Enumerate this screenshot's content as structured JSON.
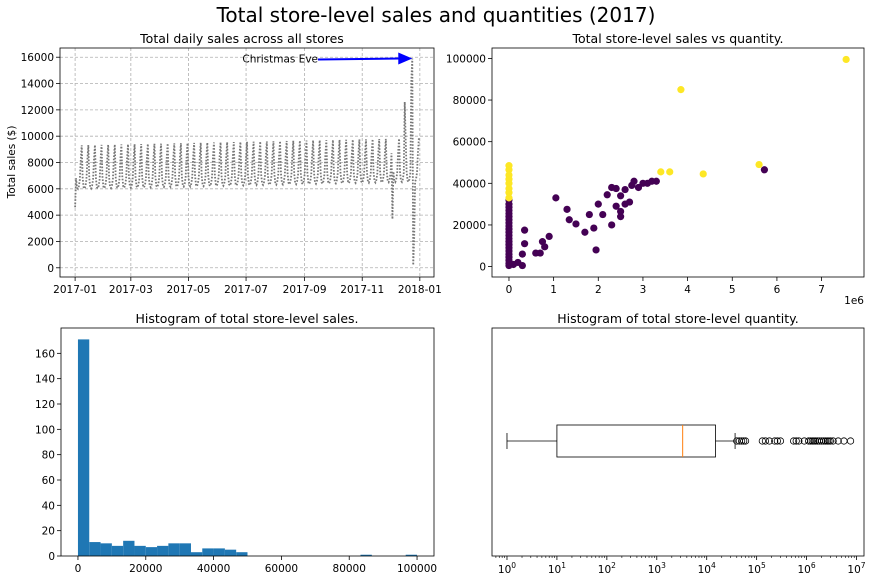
{
  "suptitle": "Total store-level sales and quantities (2017)",
  "chart_data": [
    {
      "type": "line",
      "title": "Total daily sales across all stores",
      "xlabel": "",
      "ylabel": "Total sales ($)",
      "ylim": [
        -700,
        16700
      ],
      "yticks": [
        0,
        2000,
        4000,
        6000,
        8000,
        10000,
        12000,
        14000,
        16000
      ],
      "xticks": [
        "2017-01",
        "2017-03",
        "2017-05",
        "2017-07",
        "2017-09",
        "2017-11",
        "2018-01"
      ],
      "grid": true,
      "line_style": "dotted",
      "color": "#777777",
      "annotation": {
        "text": "Christmas Eve",
        "x": "2017-12-24",
        "y": 15900,
        "arrow_color": "#0000ff"
      },
      "weekly_pattern": {
        "start": "2017-01-01",
        "days": 365,
        "weekday_values": [
          9300,
          6800,
          6100,
          6000,
          6200,
          6700,
          8200
        ],
        "trend_per_day": 1.5
      },
      "special_values": [
        {
          "date": "2017-01-01",
          "y": 4600
        },
        {
          "date": "2017-12-03",
          "y": 3700
        },
        {
          "date": "2017-12-16",
          "y": 12600
        },
        {
          "date": "2017-12-23",
          "y": 14200
        },
        {
          "date": "2017-12-24",
          "y": 15900
        },
        {
          "date": "2017-12-25",
          "y": 200
        },
        {
          "date": "2017-12-26",
          "y": 2300
        }
      ]
    },
    {
      "type": "scatter",
      "title": "Total store-level sales vs quantity.",
      "xlabel": "",
      "ylabel": "",
      "x_scale_label": "1e6",
      "xlim": [
        -0.38,
        7.95
      ],
      "ylim": [
        -5000,
        105000
      ],
      "xticks": [
        0,
        1,
        2,
        3,
        4,
        5,
        6,
        7
      ],
      "yticks": [
        0,
        20000,
        40000,
        60000,
        80000,
        100000
      ],
      "colors": {
        "yellow": "#fde725",
        "purple": "#440154"
      },
      "points_yellow": [
        [
          7.55,
          99500
        ],
        [
          3.85,
          85000
        ],
        [
          5.6,
          49000
        ],
        [
          3.4,
          45500
        ],
        [
          3.6,
          45500
        ],
        [
          4.35,
          44500
        ],
        [
          0.0,
          48500
        ],
        [
          0.0,
          46500
        ],
        [
          0.0,
          44000
        ],
        [
          0.0,
          42000
        ],
        [
          0.0,
          40000
        ],
        [
          0.0,
          37500
        ],
        [
          0.0,
          35500
        ],
        [
          0.0,
          33000
        ]
      ],
      "points_purple": [
        [
          5.72,
          46500
        ],
        [
          2.8,
          41000
        ],
        [
          3.3,
          41000
        ],
        [
          3.2,
          41000
        ],
        [
          3.1,
          40000
        ],
        [
          3.0,
          40000
        ],
        [
          2.75,
          39000
        ],
        [
          2.9,
          38000
        ],
        [
          2.3,
          38000
        ],
        [
          2.4,
          37500
        ],
        [
          2.6,
          37000
        ],
        [
          2.2,
          34500
        ],
        [
          2.5,
          34000
        ],
        [
          1.05,
          33000
        ],
        [
          2.7,
          31000
        ],
        [
          2.6,
          30000
        ],
        [
          2.0,
          30000
        ],
        [
          2.4,
          29000
        ],
        [
          1.3,
          27500
        ],
        [
          2.5,
          26500
        ],
        [
          1.8,
          25000
        ],
        [
          2.1,
          25000
        ],
        [
          2.5,
          24000
        ],
        [
          1.35,
          22500
        ],
        [
          1.5,
          20500
        ],
        [
          2.3,
          20000
        ],
        [
          1.9,
          18500
        ],
        [
          1.7,
          16500
        ],
        [
          0.35,
          17500
        ],
        [
          0.9,
          14500
        ],
        [
          0.75,
          12000
        ],
        [
          0.35,
          11000
        ],
        [
          0.8,
          9500
        ],
        [
          1.95,
          8000
        ],
        [
          0.6,
          6500
        ],
        [
          0.3,
          6000
        ],
        [
          0.7,
          6500
        ],
        [
          0.2,
          2000
        ],
        [
          0.1,
          1000
        ],
        [
          0.3,
          500
        ],
        [
          0.0,
          32000
        ],
        [
          0.0,
          30000
        ],
        [
          0.0,
          28500
        ],
        [
          0.0,
          27000
        ],
        [
          0.0,
          25500
        ],
        [
          0.0,
          24000
        ],
        [
          0.0,
          22500
        ],
        [
          0.0,
          21000
        ],
        [
          0.0,
          19500
        ],
        [
          0.0,
          18000
        ],
        [
          0.0,
          16500
        ],
        [
          0.0,
          15000
        ],
        [
          0.0,
          13500
        ],
        [
          0.0,
          12000
        ],
        [
          0.0,
          10500
        ],
        [
          0.0,
          9000
        ],
        [
          0.0,
          7500
        ],
        [
          0.0,
          6000
        ],
        [
          0.0,
          4500
        ],
        [
          0.0,
          3000
        ],
        [
          0.0,
          1500
        ],
        [
          0.0,
          500
        ]
      ]
    },
    {
      "type": "bar",
      "title": "Histogram of total store-level sales.",
      "xlabel": "",
      "ylabel": "",
      "xlim": [
        -5000,
        105000
      ],
      "ylim": [
        0,
        180
      ],
      "xticks": [
        0,
        20000,
        40000,
        60000,
        80000,
        100000
      ],
      "yticks": [
        0,
        20,
        40,
        60,
        80,
        100,
        120,
        140,
        160
      ],
      "bin_start": 0,
      "bin_width": 3333,
      "counts": [
        171,
        11,
        10,
        8,
        12,
        8,
        7,
        8,
        10,
        10,
        3,
        6,
        6,
        5,
        3,
        0,
        0,
        0,
        0,
        0,
        0,
        0,
        0,
        0,
        0,
        1,
        0,
        0,
        0,
        1
      ],
      "color": "#1f77b4"
    },
    {
      "type": "box",
      "title": "Histogram of total store-level quantity.",
      "xlabel": "",
      "ylabel": "",
      "x_scale": "log",
      "xlim_exp": [
        -0.3,
        7.15
      ],
      "xticks": [
        "10^0",
        "10^1",
        "10^2",
        "10^3",
        "10^4",
        "10^5",
        "10^6",
        "10^7"
      ],
      "whisker_low": 1,
      "q1": 10,
      "median": 3300,
      "q3": 15000,
      "whisker_high": 37000,
      "median_color": "#ff7f0e",
      "outliers": [
        40000,
        45000,
        50000,
        55000,
        60000,
        130000,
        150000,
        180000,
        230000,
        260000,
        300000,
        550000,
        620000,
        700000,
        900000,
        1100000,
        1200000,
        1300000,
        1400000,
        1500000,
        1650000,
        1800000,
        2000000,
        2200000,
        2400000,
        2600000,
        2800000,
        3000000,
        3400000,
        4300000,
        5600000,
        7600000
      ]
    }
  ]
}
